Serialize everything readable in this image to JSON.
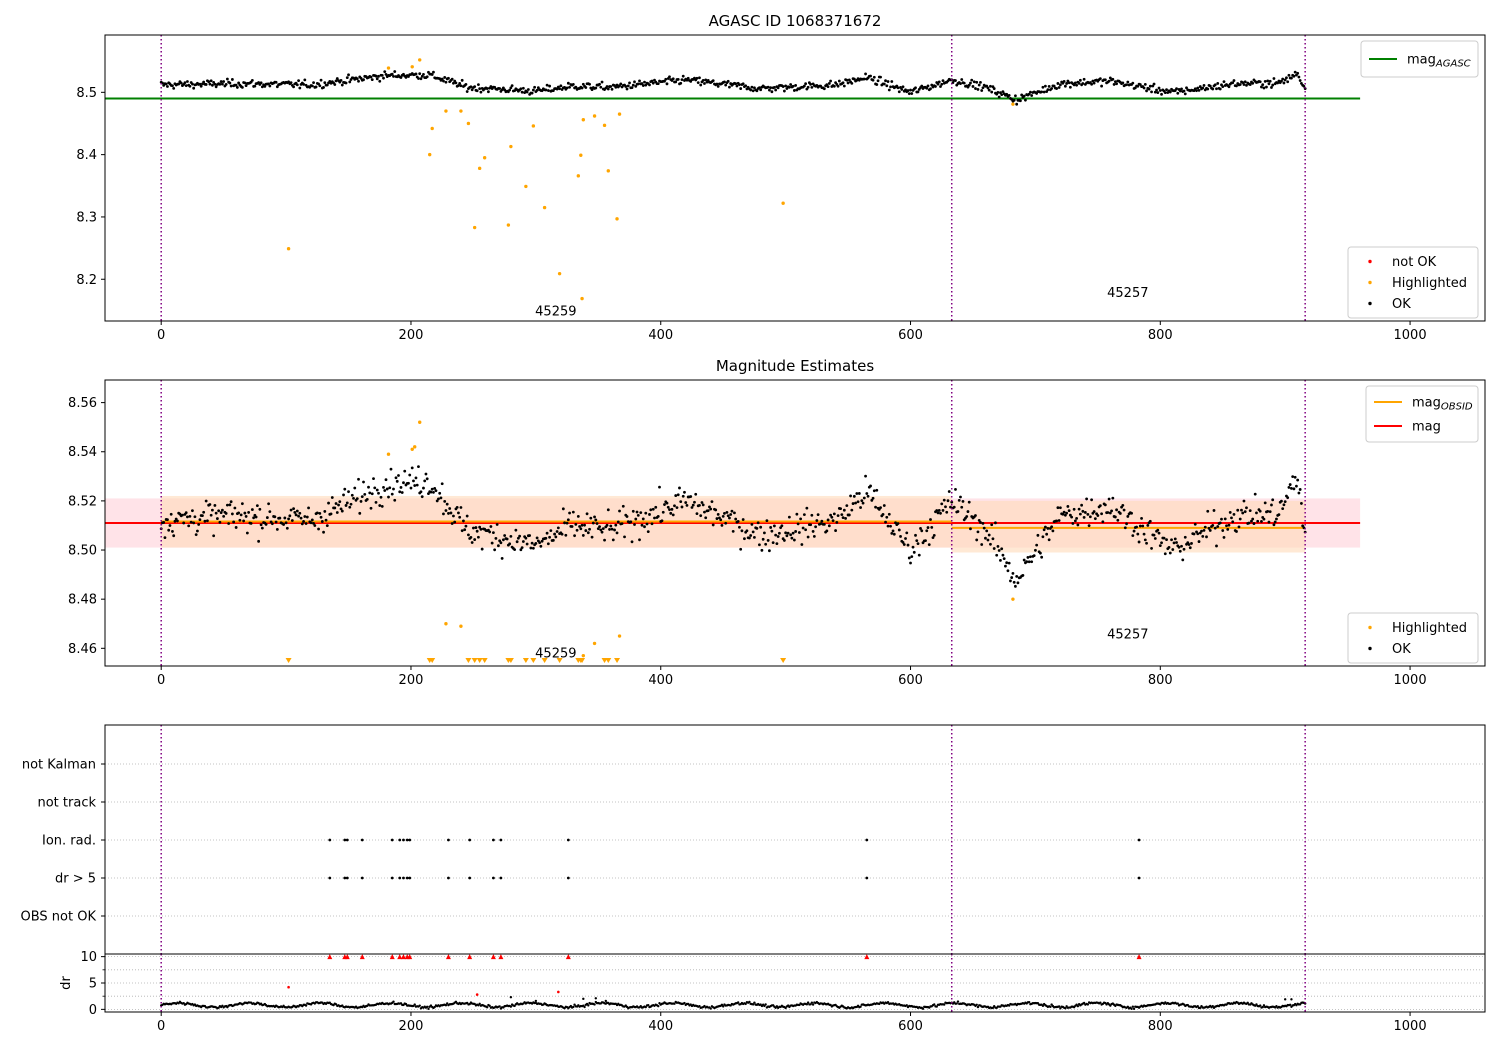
{
  "figure_title": "AGASC ID 1068371672",
  "colors": {
    "ok": "#000000",
    "not_ok": "#ff0000",
    "highlighted": "#ffa500",
    "mag_agasc": "#008000",
    "mag": "#ff0000",
    "mag_obsid": "#ffa500",
    "obsid_sep": "#800080",
    "band_mag": "#ffc0cb",
    "band_obsid": "#ffdab9",
    "grid": "#b0b0b0"
  },
  "chart_data": [
    {
      "type": "scatter",
      "title": "AGASC ID 1068371672",
      "xlim": [
        -45,
        1060
      ],
      "ylim": [
        8.133,
        8.592
      ],
      "x_ticks": [
        0,
        200,
        400,
        600,
        800,
        1000
      ],
      "y_ticks": [
        8.2,
        8.3,
        8.4,
        8.5
      ],
      "y_tick_labels": [
        "8.2",
        "8.3",
        "8.4",
        "8.5"
      ],
      "grid": false,
      "obsid_boundaries": [
        0,
        633,
        916
      ],
      "obsid_labels": [
        {
          "text": "45259",
          "x": 316,
          "y": 8.148
        },
        {
          "text": "45257",
          "x": 774,
          "y": 8.178
        }
      ],
      "reference_lines": [
        {
          "name": "mag_AGASC",
          "name_base": "mag",
          "name_sub": "AGASC",
          "y": 8.49,
          "x": [
            -45,
            960
          ],
          "color": "#008000"
        }
      ],
      "legends": [
        {
          "loc": "upper right",
          "entries": [
            {
              "label": "mag",
              "sub": "AGASC",
              "kind": "line",
              "color": "#008000"
            }
          ]
        },
        {
          "loc": "lower right",
          "entries": [
            {
              "label": "not OK",
              "kind": "dot",
              "color": "#ff0000"
            },
            {
              "label": "Highlighted",
              "kind": "dot",
              "color": "#ffa500"
            },
            {
              "label": "OK",
              "kind": "dot",
              "color": "#000000"
            }
          ]
        }
      ],
      "ok_series": {
        "name": "OK",
        "x_range": [
          0,
          916
        ],
        "y_segments": [
          [
            0,
            8.512
          ],
          [
            60,
            8.514
          ],
          [
            120,
            8.512
          ],
          [
            180,
            8.527
          ],
          [
            215,
            8.528
          ],
          [
            245,
            8.508
          ],
          [
            300,
            8.502
          ],
          [
            330,
            8.51
          ],
          [
            360,
            8.508
          ],
          [
            420,
            8.52
          ],
          [
            480,
            8.506
          ],
          [
            540,
            8.512
          ],
          [
            565,
            8.524
          ],
          [
            600,
            8.5
          ],
          [
            633,
            8.52
          ],
          [
            660,
            8.508
          ],
          [
            685,
            8.488
          ],
          [
            720,
            8.514
          ],
          [
            760,
            8.518
          ],
          [
            810,
            8.5
          ],
          [
            860,
            8.514
          ],
          [
            895,
            8.515
          ],
          [
            910,
            8.53
          ],
          [
            916,
            8.505
          ]
        ],
        "noise": 0.008
      },
      "highlighted": [
        [
          102,
          8.249
        ],
        [
          182,
          8.539
        ],
        [
          201,
          8.541
        ],
        [
          207,
          8.552
        ],
        [
          215,
          8.4
        ],
        [
          217,
          8.442
        ],
        [
          228,
          8.47
        ],
        [
          240,
          8.47
        ],
        [
          246,
          8.45
        ],
        [
          251,
          8.283
        ],
        [
          255,
          8.378
        ],
        [
          259,
          8.395
        ],
        [
          278,
          8.287
        ],
        [
          280,
          8.413
        ],
        [
          292,
          8.349
        ],
        [
          298,
          8.446
        ],
        [
          307,
          8.315
        ],
        [
          319,
          8.209
        ],
        [
          334,
          8.366
        ],
        [
          336,
          8.399
        ],
        [
          337,
          8.169
        ],
        [
          338,
          8.456
        ],
        [
          347,
          8.462
        ],
        [
          355,
          8.447
        ],
        [
          358,
          8.374
        ],
        [
          365,
          8.297
        ],
        [
          367,
          8.465
        ],
        [
          498,
          8.322
        ],
        [
          682,
          8.481
        ]
      ]
    },
    {
      "type": "scatter",
      "title": "Magnitude Estimates",
      "xlim": [
        -45,
        1060
      ],
      "ylim": [
        8.4528,
        8.5692
      ],
      "x_ticks": [
        0,
        200,
        400,
        600,
        800,
        1000
      ],
      "y_ticks": [
        8.46,
        8.48,
        8.5,
        8.52,
        8.54,
        8.56
      ],
      "y_tick_labels": [
        "8.46",
        "8.48",
        "8.50",
        "8.52",
        "8.54",
        "8.56"
      ],
      "grid": false,
      "obsid_boundaries": [
        0,
        633,
        916
      ],
      "obsid_labels": [
        {
          "text": "45259",
          "x": 316,
          "y": 8.4578
        },
        {
          "text": "45257",
          "x": 774,
          "y": 8.4656
        }
      ],
      "bands": [
        {
          "name": "mag",
          "x": [
            -45,
            960
          ],
          "y": [
            8.501,
            8.521
          ],
          "color": "#ffc0cb"
        },
        {
          "name": "mag_OBSID 45259",
          "x": [
            0,
            633
          ],
          "y": [
            8.501,
            8.522
          ],
          "color": "#ffdab9"
        },
        {
          "name": "mag_OBSID 45257",
          "x": [
            633,
            916
          ],
          "y": [
            8.499,
            8.52
          ],
          "color": "#ffdab9"
        }
      ],
      "reference_lines": [
        {
          "name": "mag",
          "y": 8.511,
          "x": [
            -45,
            960
          ],
          "color": "#ff0000"
        },
        {
          "name": "mag_OBSID 45259",
          "y": 8.5116,
          "x": [
            0,
            633
          ],
          "color": "#ffa500"
        },
        {
          "name": "mag_OBSID 45257",
          "y": 8.509,
          "x": [
            633,
            916
          ],
          "color": "#ffa500"
        }
      ],
      "legends": [
        {
          "loc": "upper right",
          "entries": [
            {
              "label": "mag",
              "sub": "OBSID",
              "kind": "line",
              "color": "#ffa500"
            },
            {
              "label": "mag",
              "kind": "line",
              "color": "#ff0000"
            }
          ]
        },
        {
          "loc": "lower right",
          "entries": [
            {
              "label": "Highlighted",
              "kind": "dot",
              "color": "#ffa500"
            },
            {
              "label": "OK",
              "kind": "dot",
              "color": "#000000"
            }
          ]
        }
      ],
      "ok_series": {
        "name": "OK",
        "x_range": [
          0,
          916
        ],
        "y_segments": [
          [
            0,
            8.512
          ],
          [
            60,
            8.514
          ],
          [
            120,
            8.512
          ],
          [
            180,
            8.527
          ],
          [
            215,
            8.528
          ],
          [
            245,
            8.508
          ],
          [
            300,
            8.502
          ],
          [
            330,
            8.51
          ],
          [
            360,
            8.508
          ],
          [
            420,
            8.52
          ],
          [
            480,
            8.506
          ],
          [
            540,
            8.512
          ],
          [
            565,
            8.524
          ],
          [
            600,
            8.5
          ],
          [
            633,
            8.52
          ],
          [
            660,
            8.508
          ],
          [
            685,
            8.488
          ],
          [
            720,
            8.514
          ],
          [
            760,
            8.518
          ],
          [
            810,
            8.5
          ],
          [
            860,
            8.514
          ],
          [
            895,
            8.515
          ],
          [
            910,
            8.53
          ],
          [
            916,
            8.505
          ]
        ],
        "noise": 0.008
      },
      "highlighted": [
        [
          182,
          8.539
        ],
        [
          201,
          8.541
        ],
        [
          203,
          8.542
        ],
        [
          207,
          8.552
        ],
        [
          228,
          8.47
        ],
        [
          240,
          8.469
        ],
        [
          338,
          8.457
        ],
        [
          347,
          8.462
        ],
        [
          367,
          8.465
        ],
        [
          682,
          8.48
        ]
      ],
      "below_range_markers_x": [
        102,
        215,
        217,
        246,
        251,
        255,
        259,
        278,
        280,
        292,
        298,
        307,
        319,
        334,
        336,
        337,
        355,
        358,
        365,
        498
      ]
    },
    {
      "type": "scatter",
      "title": "",
      "xlim": [
        -45,
        1060
      ],
      "categories": [
        "not Kalman",
        "not track",
        "Ion. rad.",
        "dr > 5",
        "OBS not OK"
      ],
      "grid": true,
      "obsid_boundaries": [
        0,
        633,
        916
      ],
      "flag_points": {
        "not Kalman": [],
        "not track": [],
        "Ion. rad.": [
          135,
          147,
          149,
          161,
          185,
          191,
          194,
          197,
          199,
          230,
          247,
          266,
          272,
          326,
          565,
          783
        ],
        "dr > 5": [
          135,
          147,
          149,
          161,
          185,
          191,
          194,
          197,
          199,
          230,
          247,
          266,
          272,
          326,
          565,
          783
        ],
        "OBS not OK": []
      }
    },
    {
      "type": "scatter",
      "title": "",
      "ylabel": "dr",
      "xlim": [
        -45,
        1060
      ],
      "ylim": [
        -0.5,
        10.5
      ],
      "x_ticks": [
        0,
        200,
        400,
        600,
        800,
        1000
      ],
      "y_ticks": [
        0,
        5,
        10
      ],
      "y_tick_labels": [
        "0",
        "5",
        "10"
      ],
      "grid": true,
      "obsid_boundaries": [
        0,
        633,
        916
      ],
      "ok_series": {
        "name": "OK",
        "x_range": [
          0,
          916
        ],
        "y_base": 0.8,
        "noise": 0.35
      },
      "not_ok_points": [
        [
          102,
          4.2
        ],
        [
          253,
          2.8
        ],
        [
          318,
          3.3
        ],
        [
          135,
          10
        ],
        [
          147,
          10
        ],
        [
          149,
          10
        ],
        [
          161,
          10
        ],
        [
          185,
          10
        ],
        [
          191,
          10
        ],
        [
          194,
          10
        ],
        [
          197,
          10
        ],
        [
          199,
          10
        ],
        [
          230,
          10
        ],
        [
          247,
          10
        ],
        [
          266,
          10
        ],
        [
          272,
          10
        ],
        [
          326,
          10
        ],
        [
          565,
          10
        ],
        [
          783,
          10
        ]
      ],
      "outlier_ok_points": [
        [
          280,
          2.3
        ],
        [
          300,
          1.6
        ],
        [
          338,
          2.0
        ],
        [
          348,
          2.1
        ],
        [
          356,
          1.6
        ],
        [
          900,
          1.9
        ],
        [
          905,
          1.9
        ]
      ]
    }
  ]
}
